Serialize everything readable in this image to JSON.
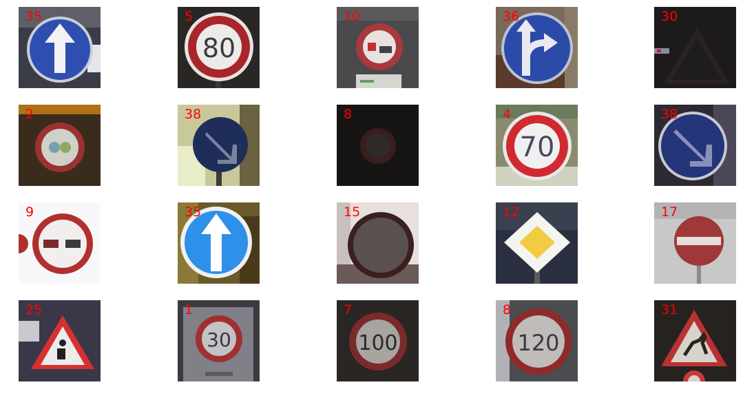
{
  "label_color": "#ff0000",
  "samples": [
    {
      "label": "35",
      "icon": "ahead-only-sign-icon"
    },
    {
      "label": "5",
      "icon": "speed-limit-80-sign-icon",
      "sign_text": "80"
    },
    {
      "label": "10",
      "icon": "no-passing-trucks-sign-icon"
    },
    {
      "label": "36",
      "icon": "straight-or-right-sign-icon"
    },
    {
      "label": "30",
      "icon": "dark-warning-sign-icon"
    },
    {
      "label": "2",
      "icon": "speed-limit-50-sign-icon"
    },
    {
      "label": "38",
      "icon": "keep-right-sign-icon"
    },
    {
      "label": "8",
      "icon": "dark-speed-limit-sign-icon"
    },
    {
      "label": "4",
      "icon": "speed-limit-70-sign-icon",
      "sign_text": "70"
    },
    {
      "label": "38",
      "icon": "keep-right-sign-icon"
    },
    {
      "label": "9",
      "icon": "no-passing-sign-icon"
    },
    {
      "label": "35",
      "icon": "ahead-only-sign-icon"
    },
    {
      "label": "15",
      "icon": "no-vehicles-sign-icon"
    },
    {
      "label": "12",
      "icon": "priority-road-sign-icon"
    },
    {
      "label": "17",
      "icon": "no-entry-sign-icon"
    },
    {
      "label": "25",
      "icon": "road-work-sign-icon"
    },
    {
      "label": "1",
      "icon": "speed-limit-30-sign-icon",
      "sign_text": "30"
    },
    {
      "label": "7",
      "icon": "speed-limit-100-sign-icon",
      "sign_text": "100"
    },
    {
      "label": "8",
      "icon": "speed-limit-120-sign-icon",
      "sign_text": "120"
    },
    {
      "label": "31",
      "icon": "wild-animals-crossing-sign-icon"
    }
  ]
}
